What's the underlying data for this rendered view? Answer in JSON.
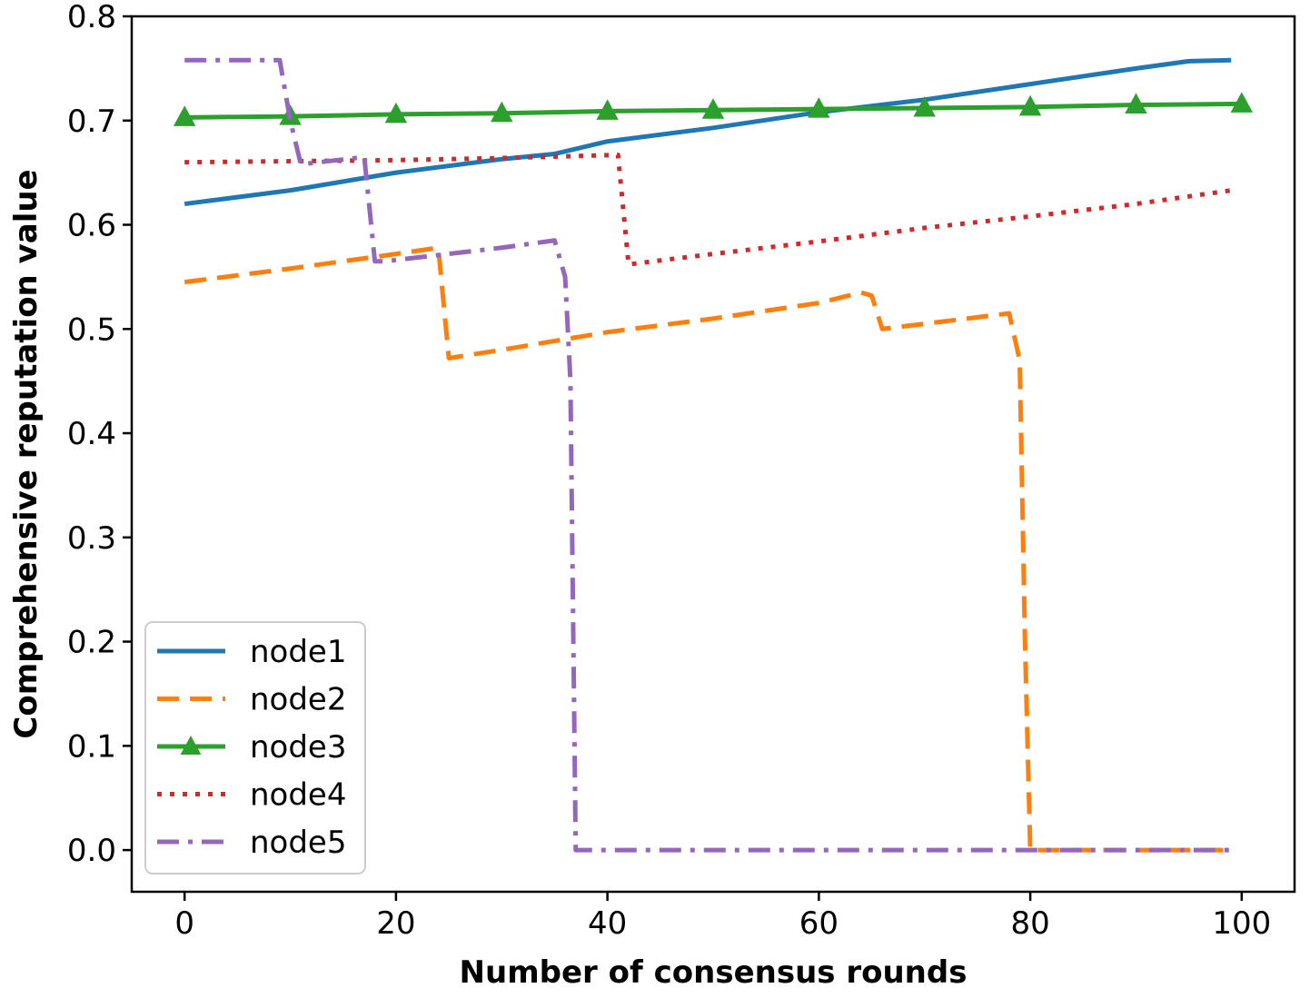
{
  "chart_data": {
    "type": "line",
    "title": "",
    "xlabel": "Number of consensus rounds",
    "ylabel": "Comprehensive reputation value",
    "xlim": [
      -5,
      105
    ],
    "ylim": [
      -0.04,
      0.8
    ],
    "x_ticks": [
      0,
      20,
      40,
      60,
      80,
      100
    ],
    "y_ticks": [
      0.0,
      0.1,
      0.2,
      0.3,
      0.4,
      0.5,
      0.6,
      0.7,
      0.8
    ],
    "x_tick_labels": [
      "0",
      "20",
      "40",
      "60",
      "80",
      "100"
    ],
    "y_tick_labels": [
      "0.0",
      "0.1",
      "0.2",
      "0.3",
      "0.4",
      "0.5",
      "0.6",
      "0.7",
      "0.8"
    ],
    "grid": false,
    "legend_position": "lower-left",
    "series": [
      {
        "name": "node1",
        "color": "#1f77b4",
        "style": "solid",
        "marker": "none",
        "x": [
          0,
          10,
          20,
          30,
          35,
          40,
          50,
          60,
          70,
          80,
          90,
          95,
          99
        ],
        "y": [
          0.62,
          0.633,
          0.65,
          0.663,
          0.668,
          0.68,
          0.693,
          0.708,
          0.72,
          0.735,
          0.75,
          0.757,
          0.758
        ]
      },
      {
        "name": "node2",
        "color": "#ff7f0e",
        "style": "dashed",
        "marker": "none",
        "x": [
          0,
          10,
          20,
          24,
          25,
          30,
          40,
          50,
          60,
          64,
          65,
          66,
          70,
          78,
          79,
          79.5,
          80,
          81,
          90,
          99
        ],
        "y": [
          0.545,
          0.558,
          0.572,
          0.578,
          0.472,
          0.48,
          0.497,
          0.51,
          0.525,
          0.535,
          0.532,
          0.5,
          0.505,
          0.515,
          0.47,
          0.2,
          0.0,
          0.0,
          0.0,
          0.0
        ]
      },
      {
        "name": "node3",
        "color": "#2ca02c",
        "style": "solid",
        "marker": "triangle",
        "x": [
          0,
          10,
          20,
          30,
          40,
          50,
          60,
          70,
          80,
          90,
          100
        ],
        "y": [
          0.703,
          0.704,
          0.706,
          0.707,
          0.709,
          0.71,
          0.711,
          0.712,
          0.713,
          0.715,
          0.716
        ]
      },
      {
        "name": "node4",
        "color": "#d62728",
        "style": "dotted",
        "marker": "none",
        "x": [
          0,
          10,
          20,
          30,
          41,
          42,
          50,
          60,
          70,
          80,
          90,
          99
        ],
        "y": [
          0.66,
          0.661,
          0.662,
          0.664,
          0.667,
          0.562,
          0.572,
          0.584,
          0.597,
          0.608,
          0.62,
          0.633
        ]
      },
      {
        "name": "node5",
        "color": "#9467bd",
        "style": "dashdot",
        "marker": "none",
        "x": [
          0,
          9,
          10,
          11,
          17,
          18,
          19,
          30,
          35,
          36,
          36.5,
          37,
          38,
          50,
          60,
          70,
          80,
          90,
          99
        ],
        "y": [
          0.758,
          0.758,
          0.7,
          0.658,
          0.665,
          0.565,
          0.565,
          0.578,
          0.585,
          0.55,
          0.45,
          0.0,
          0.0,
          0.0,
          0.0,
          0.0,
          0.0,
          0.0,
          0.0
        ]
      }
    ]
  }
}
